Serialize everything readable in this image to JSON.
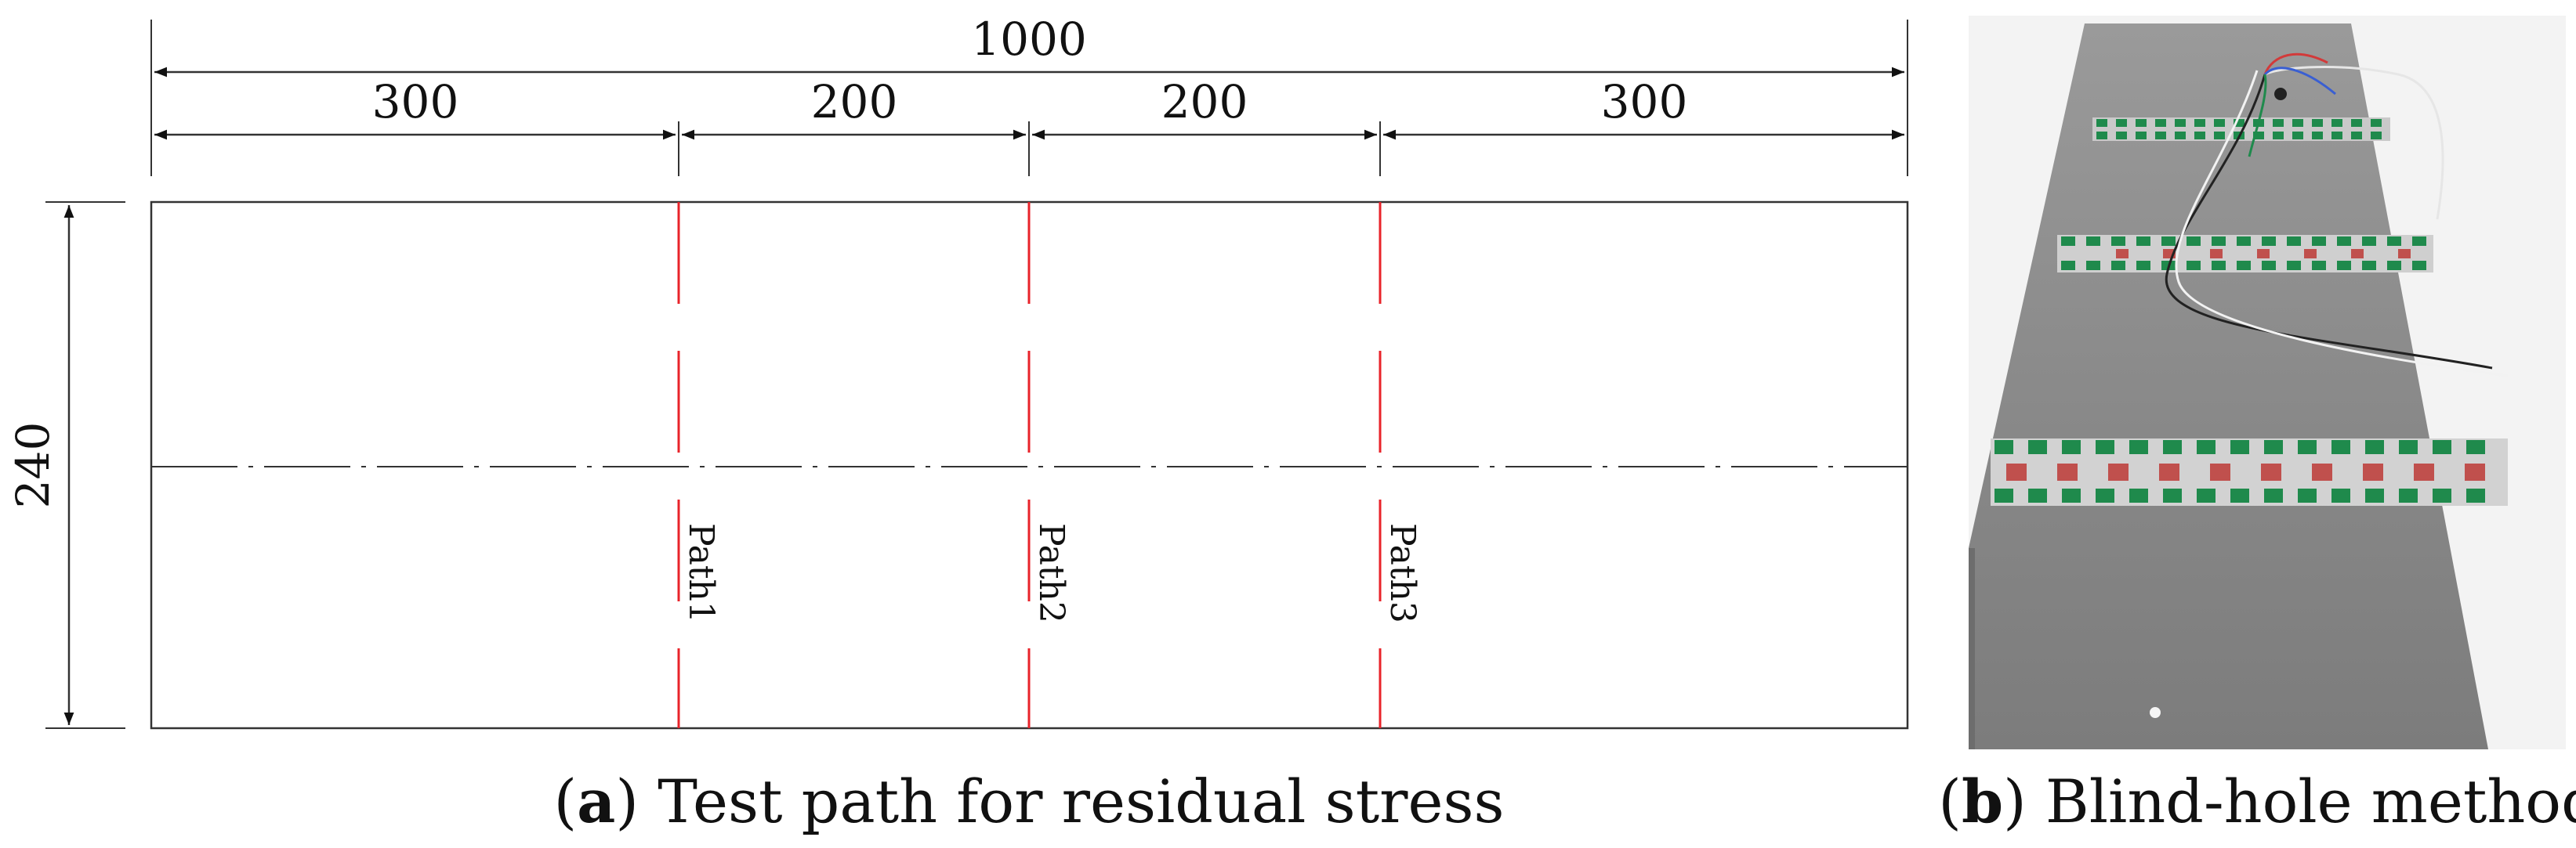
{
  "panel_a": {
    "dimensions": {
      "total": "1000",
      "segments": [
        "300",
        "200",
        "200",
        "300"
      ],
      "height": "240"
    },
    "paths": [
      "Path1",
      "Path2",
      "Path3"
    ],
    "caption": {
      "letter": "a",
      "text": " Test path for residual stress"
    }
  },
  "panel_b": {
    "caption": {
      "letter": "b",
      "text": " Blind-hole method"
    }
  },
  "colors": {
    "line": "#333333",
    "path_line": "#e8232a",
    "plate": "#8e8e8e",
    "gauge_green": "#1f8a4c",
    "gauge_red": "#c0504d"
  }
}
